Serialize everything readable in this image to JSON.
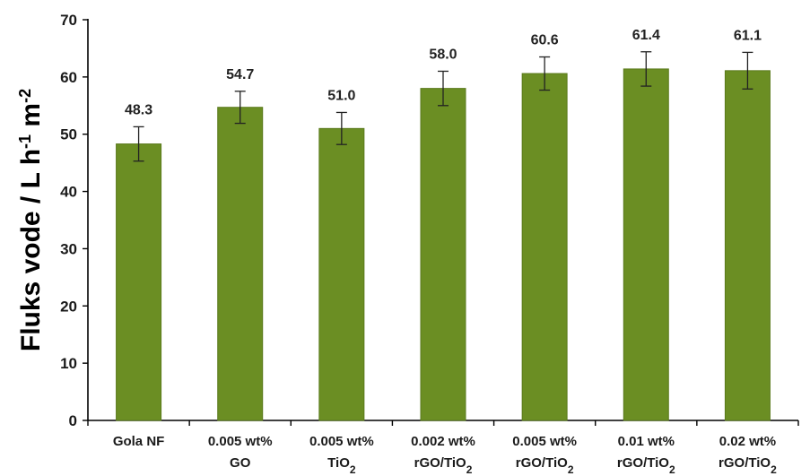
{
  "chart_data": {
    "type": "bar",
    "title": "",
    "xlabel": "",
    "ylabel": "Fluks vode / L h-1 m-2",
    "ylabel_parts": {
      "main": "Fluks vode / L h",
      "sup1": "-1",
      "mid": " m",
      "sup2": "-2"
    },
    "ylim": [
      0,
      70
    ],
    "yticks": [
      0,
      10,
      20,
      30,
      40,
      50,
      60,
      70
    ],
    "grid": false,
    "legend": "none",
    "bar_color": "#6b8e23",
    "bar_stroke": "#5a7a1c",
    "categories": [
      {
        "line1": "Gola NF",
        "line2": "",
        "sub": ""
      },
      {
        "line1": "0.005 wt%",
        "line2": "GO",
        "sub": ""
      },
      {
        "line1": "0.005 wt%",
        "line2": "TiO",
        "sub": "2"
      },
      {
        "line1": "0.002 wt%",
        "line2": "rGO/TiO",
        "sub": "2"
      },
      {
        "line1": "0.005 wt%",
        "line2": "rGO/TiO",
        "sub": "2"
      },
      {
        "line1": "0.01 wt%",
        "line2": "rGO/TiO",
        "sub": "2"
      },
      {
        "line1": "0.02 wt%",
        "line2": "rGO/TiO",
        "sub": "2"
      }
    ],
    "values": [
      48.3,
      54.7,
      51.0,
      58.0,
      60.6,
      61.4,
      61.1
    ],
    "value_labels": [
      "48.3",
      "54.7",
      "51.0",
      "58.0",
      "60.6",
      "61.4",
      "61.1"
    ],
    "errors": [
      3.0,
      2.8,
      2.8,
      3.0,
      2.9,
      3.0,
      3.2
    ]
  }
}
